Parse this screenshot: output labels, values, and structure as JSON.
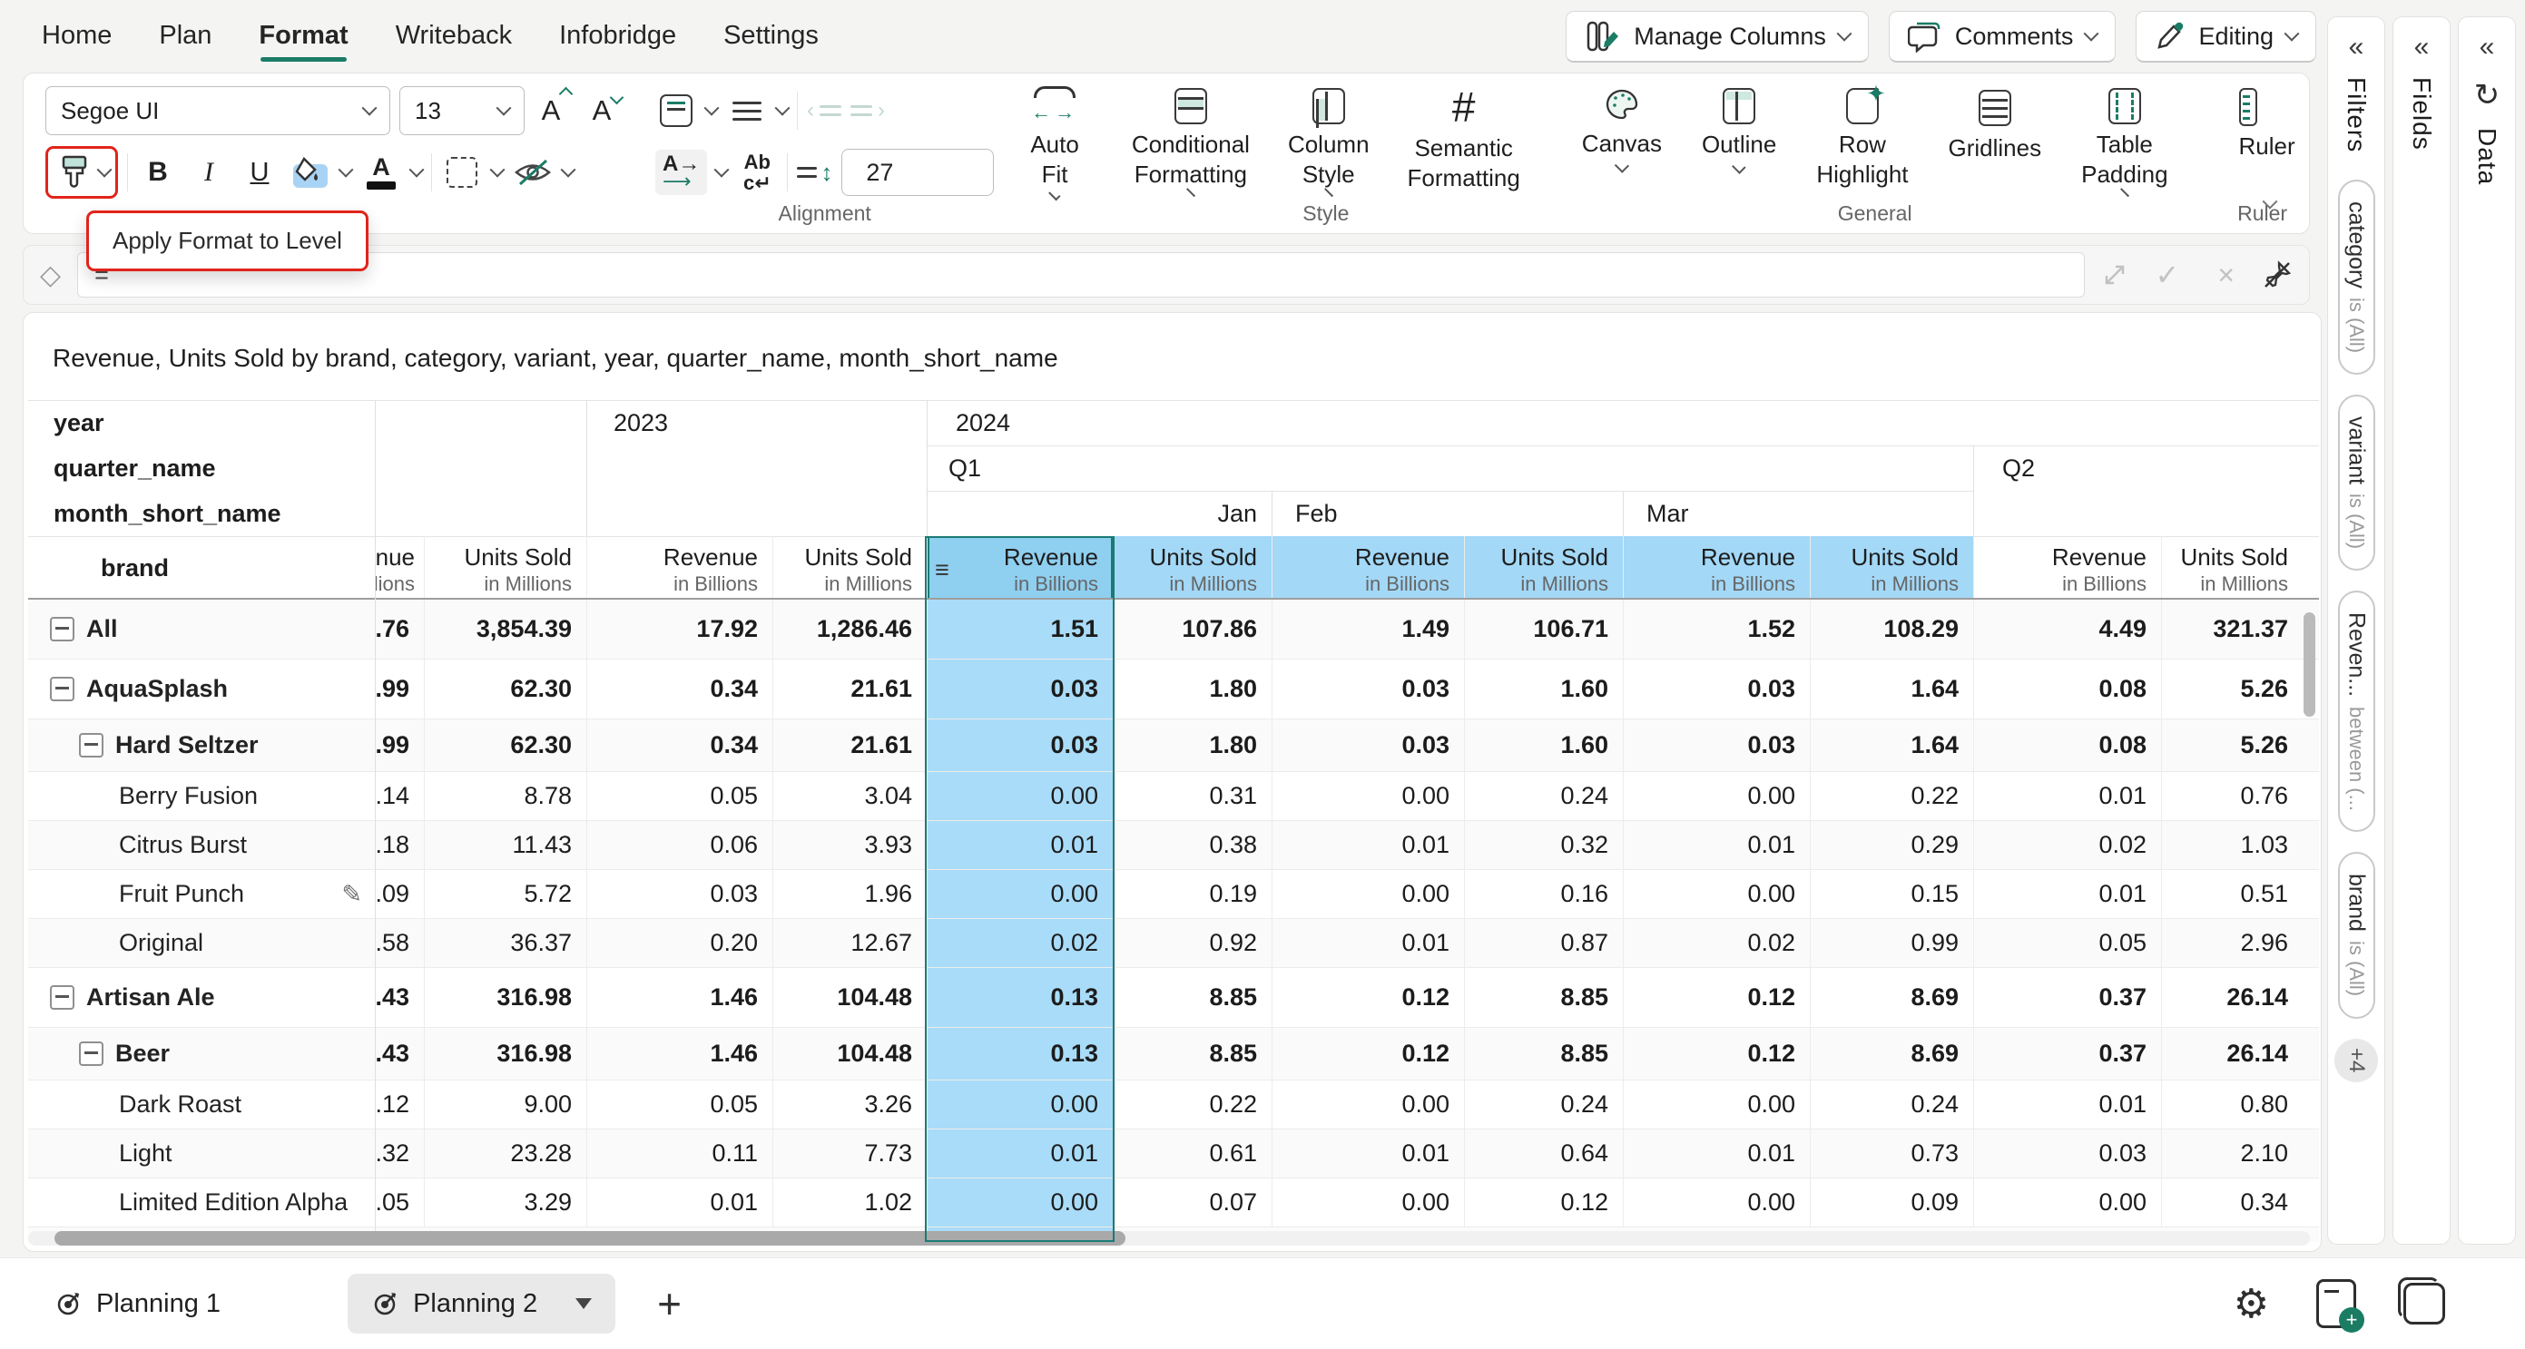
{
  "menu": {
    "items": [
      "Home",
      "Plan",
      "Format",
      "Writeback",
      "Infobridge",
      "Settings"
    ],
    "active": "Format"
  },
  "top_actions": {
    "manage_columns": "Manage Columns",
    "comments": "Comments",
    "editing": "Editing"
  },
  "toolbar": {
    "font_name": "Segoe UI",
    "font_size": "13",
    "bold": "B",
    "italic": "I",
    "underline": "U",
    "row_height_value": "27",
    "auto_fit": "Auto Fit",
    "conditional_formatting": "Conditional\nFormatting",
    "column_style": "Column\nStyle",
    "semantic_formatting": "Semantic\nFormatting",
    "canvas": "Canvas",
    "outline": "Outline",
    "row_highlight": "Row\nHighlight",
    "gridlines": "Gridlines",
    "table_padding": "Table\nPadding",
    "ruler": "Ruler",
    "group_labels": {
      "alignment": "Alignment",
      "style": "Style",
      "general": "General",
      "ruler": "Ruler"
    }
  },
  "annotation": {
    "tooltip": "Apply Format to Level"
  },
  "formula_bar": {
    "value": "="
  },
  "view": {
    "title": "Revenue, Units Sold by brand, category, variant, year, quarter_name, month_short_name"
  },
  "table": {
    "dim_labels": {
      "year": "year",
      "quarter": "quarter_name",
      "month": "month_short_name",
      "row": "brand"
    },
    "years": [
      "2023",
      "2024"
    ],
    "quarters": [
      "Q1",
      "Q2"
    ],
    "months": [
      "Jan",
      "Feb",
      "Mar"
    ],
    "measures": {
      "revenue_title": "Revenue",
      "revenue_sub": "in Billions",
      "units_title": "Units Sold",
      "units_sub": "in Millions"
    },
    "rows": [
      {
        "label": "All",
        "level": 0,
        "bold": true,
        "collapsible": true,
        "values": [
          ".76",
          "3,854.39",
          "17.92",
          "1,286.46",
          "1.51",
          "107.86",
          "1.49",
          "106.71",
          "1.52",
          "108.29",
          "4.49",
          "321.37"
        ]
      },
      {
        "label": "AquaSplash",
        "level": 0,
        "bold": true,
        "collapsible": true,
        "values": [
          ".99",
          "62.30",
          "0.34",
          "21.61",
          "0.03",
          "1.80",
          "0.03",
          "1.60",
          "0.03",
          "1.64",
          "0.08",
          "5.26"
        ]
      },
      {
        "label": "Hard Seltzer",
        "level": 1,
        "bold": true,
        "collapsible": true,
        "values": [
          ".99",
          "62.30",
          "0.34",
          "21.61",
          "0.03",
          "1.80",
          "0.03",
          "1.60",
          "0.03",
          "1.64",
          "0.08",
          "5.26"
        ]
      },
      {
        "label": "Berry Fusion",
        "level": 2,
        "bold": false,
        "collapsible": false,
        "values": [
          ".14",
          "8.78",
          "0.05",
          "3.04",
          "0.00",
          "0.31",
          "0.00",
          "0.24",
          "0.00",
          "0.22",
          "0.01",
          "0.76"
        ]
      },
      {
        "label": "Citrus Burst",
        "level": 2,
        "bold": false,
        "collapsible": false,
        "values": [
          ".18",
          "11.43",
          "0.06",
          "3.93",
          "0.01",
          "0.38",
          "0.01",
          "0.32",
          "0.01",
          "0.29",
          "0.02",
          "1.03"
        ]
      },
      {
        "label": "Fruit Punch",
        "level": 2,
        "bold": false,
        "collapsible": false,
        "edit_icon": true,
        "values": [
          ".09",
          "5.72",
          "0.03",
          "1.96",
          "0.00",
          "0.19",
          "0.00",
          "0.16",
          "0.00",
          "0.15",
          "0.01",
          "0.51"
        ]
      },
      {
        "label": "Original",
        "level": 2,
        "bold": false,
        "collapsible": false,
        "values": [
          ".58",
          "36.37",
          "0.20",
          "12.67",
          "0.02",
          "0.92",
          "0.01",
          "0.87",
          "0.02",
          "0.99",
          "0.05",
          "2.96"
        ]
      },
      {
        "label": "Artisan Ale",
        "level": 0,
        "bold": true,
        "collapsible": true,
        "values": [
          ".43",
          "316.98",
          "1.46",
          "104.48",
          "0.13",
          "8.85",
          "0.12",
          "8.85",
          "0.12",
          "8.69",
          "0.37",
          "26.14"
        ]
      },
      {
        "label": "Beer",
        "level": 1,
        "bold": true,
        "collapsible": true,
        "values": [
          ".43",
          "316.98",
          "1.46",
          "104.48",
          "0.13",
          "8.85",
          "0.12",
          "8.85",
          "0.12",
          "8.69",
          "0.37",
          "26.14"
        ]
      },
      {
        "label": "Dark Roast",
        "level": 2,
        "bold": false,
        "collapsible": false,
        "values": [
          ".12",
          "9.00",
          "0.05",
          "3.26",
          "0.00",
          "0.22",
          "0.00",
          "0.24",
          "0.00",
          "0.24",
          "0.01",
          "0.80"
        ]
      },
      {
        "label": "Light",
        "level": 2,
        "bold": false,
        "collapsible": false,
        "values": [
          ".32",
          "23.28",
          "0.11",
          "7.73",
          "0.01",
          "0.61",
          "0.01",
          "0.64",
          "0.01",
          "0.73",
          "0.03",
          "2.10"
        ]
      },
      {
        "label": "Limited Edition Alpha",
        "level": 2,
        "bold": false,
        "collapsible": false,
        "values": [
          ".05",
          "3.29",
          "0.01",
          "1.02",
          "0.00",
          "0.07",
          "0.00",
          "0.12",
          "0.00",
          "0.09",
          "0.00",
          "0.34"
        ]
      }
    ]
  },
  "sidebar": {
    "panels": [
      {
        "title": "Filters"
      },
      {
        "title": "Fields"
      },
      {
        "title": "Data"
      }
    ],
    "filter_pills": [
      {
        "field": "category",
        "cond": "is (All)"
      },
      {
        "field": "variant",
        "cond": "is (All)"
      },
      {
        "field": "Reven...",
        "cond": "between (..."
      },
      {
        "field": "brand",
        "cond": "is (All)"
      }
    ],
    "more_badge": "+4"
  },
  "bottom_bar": {
    "tabs": [
      {
        "label": "Planning 1",
        "active": false
      },
      {
        "label": "Planning 2",
        "active": true
      }
    ]
  },
  "colors": {
    "accent_teal": "#1b7c66",
    "annotation_red": "#e0241b",
    "selected_column_fill": "#a9dcf8",
    "selected_header_fill": "#8fcff0",
    "q1_header_fill": "#a3d8f7",
    "selection_border": "#1a7a74"
  }
}
